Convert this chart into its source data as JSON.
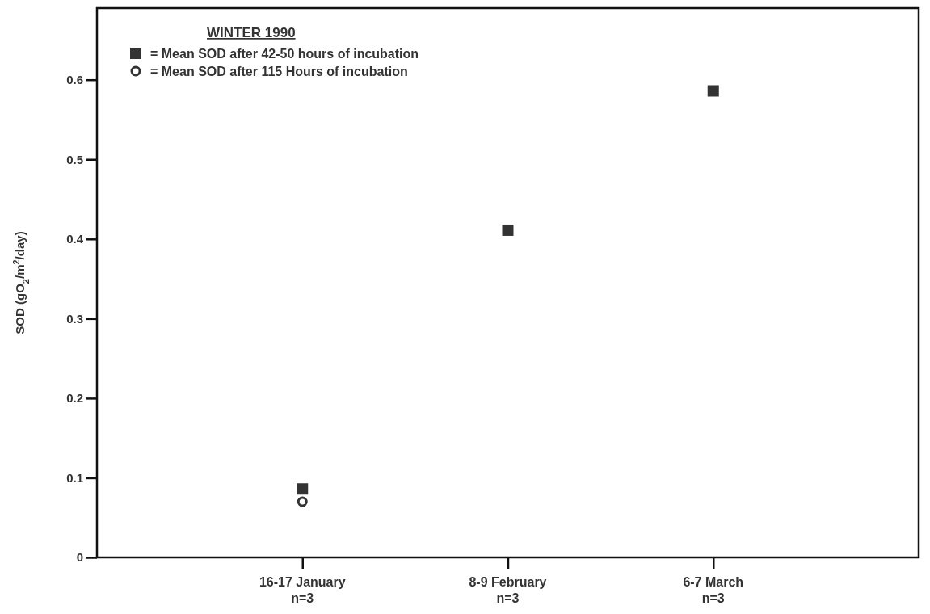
{
  "chart_data": {
    "type": "scatter",
    "ylabel": "SOD (gO$_{2}$/m$^{2}$/day)",
    "legend_title": "WINTER 1990",
    "categories": [
      "16-17 January\nn=3",
      "8-9 February\nn=3",
      "6-7 March\nn=3"
    ],
    "series": [
      {
        "name": "= Mean SOD after 42-50 hours of incubation",
        "color": "#333333",
        "marker": "square",
        "values": [
          0.086,
          0.411,
          0.586
        ]
      },
      {
        "name": "= Mean SOD after 115 Hours of incubation",
        "color": "#333333",
        "marker": "circle",
        "values": [
          0.07,
          null,
          null
        ]
      }
    ],
    "ylim": [
      0,
      0.69
    ],
    "yticks": [
      0,
      0.1,
      0.2,
      0.3,
      0.4,
      0.5,
      0.6
    ],
    "grid": false,
    "legend": "top left"
  }
}
